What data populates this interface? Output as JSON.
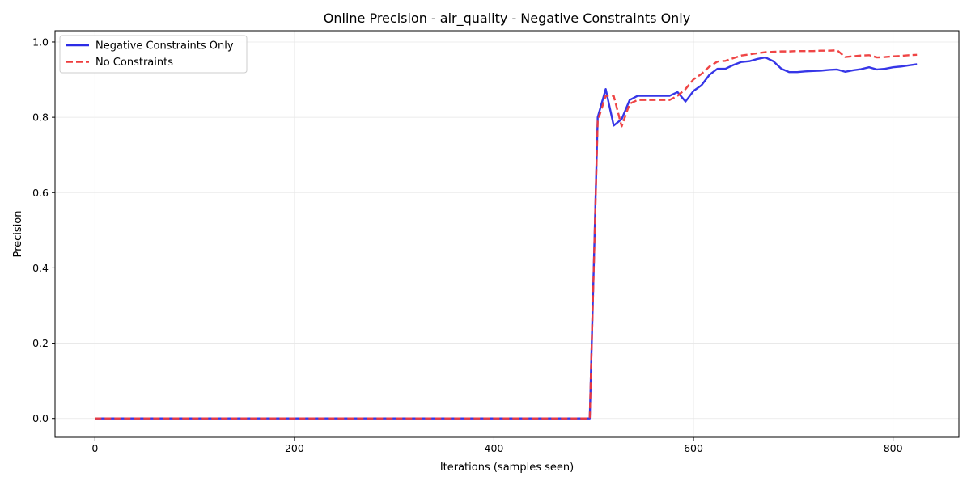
{
  "chart_data": {
    "type": "line",
    "title": "Online Precision - air_quality - Negative Constraints Only",
    "xlabel": "Iterations (samples seen)",
    "ylabel": "Precision",
    "xlim": [
      -40,
      866
    ],
    "ylim": [
      -0.05,
      1.03
    ],
    "xticks": [
      0,
      200,
      400,
      600,
      800
    ],
    "yticks": [
      0.0,
      0.2,
      0.4,
      0.6,
      0.8,
      1.0
    ],
    "xtick_labels": [
      "0",
      "200",
      "400",
      "600",
      "800"
    ],
    "ytick_labels": [
      "0.0",
      "0.2",
      "0.4",
      "0.6",
      "0.8",
      "1.0"
    ],
    "grid": true,
    "legend_position": "top-left",
    "series": [
      {
        "name": "Negative Constraints Only",
        "color": "#2b2be6",
        "style": "solid",
        "x": [
          0,
          496,
          504,
          512,
          520,
          528,
          536,
          544,
          552,
          560,
          568,
          576,
          584,
          592,
          600,
          608,
          616,
          624,
          632,
          640,
          648,
          656,
          664,
          672,
          680,
          688,
          696,
          704,
          712,
          720,
          728,
          736,
          744,
          752,
          760,
          768,
          776,
          784,
          792,
          800,
          808,
          816,
          824
        ],
        "y": [
          0.0,
          0.0,
          0.8,
          0.875,
          0.778,
          0.795,
          0.846,
          0.857,
          0.857,
          0.857,
          0.857,
          0.857,
          0.867,
          0.842,
          0.87,
          0.885,
          0.913,
          0.929,
          0.929,
          0.939,
          0.947,
          0.949,
          0.955,
          0.959,
          0.949,
          0.929,
          0.92,
          0.92,
          0.922,
          0.923,
          0.924,
          0.926,
          0.927,
          0.921,
          0.925,
          0.928,
          0.933,
          0.927,
          0.929,
          0.933,
          0.935,
          0.938,
          0.941
        ]
      },
      {
        "name": "No Constraints",
        "color": "#ee3b3b",
        "style": "dashed",
        "x": [
          0,
          496,
          504,
          512,
          520,
          528,
          536,
          544,
          552,
          560,
          568,
          576,
          584,
          592,
          600,
          608,
          616,
          624,
          632,
          640,
          648,
          656,
          664,
          672,
          680,
          688,
          696,
          704,
          712,
          720,
          728,
          736,
          744,
          752,
          760,
          768,
          776,
          784,
          792,
          800,
          808,
          816,
          824
        ],
        "y": [
          0.0,
          0.0,
          0.79,
          0.857,
          0.857,
          0.776,
          0.836,
          0.846,
          0.846,
          0.846,
          0.846,
          0.846,
          0.857,
          0.875,
          0.901,
          0.915,
          0.935,
          0.948,
          0.95,
          0.957,
          0.964,
          0.967,
          0.97,
          0.973,
          0.974,
          0.975,
          0.975,
          0.976,
          0.976,
          0.976,
          0.977,
          0.977,
          0.978,
          0.96,
          0.962,
          0.964,
          0.965,
          0.959,
          0.96,
          0.962,
          0.963,
          0.965,
          0.966
        ]
      }
    ]
  }
}
